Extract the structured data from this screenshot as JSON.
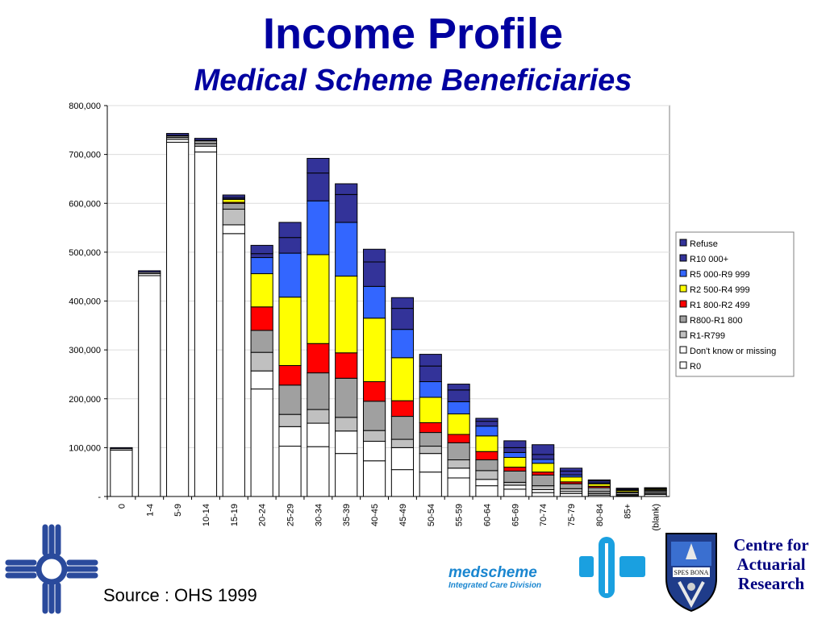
{
  "title": "Income Profile",
  "subtitle": "Medical Scheme Beneficiaries",
  "source": "Source : OHS 1999",
  "logos": {
    "medscheme_name": "medscheme",
    "medscheme_tagline": "Integrated Care Division",
    "car_lines": [
      "Centre for",
      "Actuarial",
      "Research"
    ],
    "seal_text": "SPES BONA"
  },
  "chart_data": {
    "type": "bar",
    "stacked": true,
    "categories": [
      "0",
      "1-4",
      "5-9",
      "10-14",
      "15-19",
      "20-24",
      "25-29",
      "30-34",
      "35-39",
      "40-45",
      "45-49",
      "50-54",
      "55-59",
      "60-64",
      "65-69",
      "70-74",
      "75-79",
      "80-84",
      "85+",
      "(blank)"
    ],
    "y_ticks": [
      "-",
      "100,000",
      "200,000",
      "300,000",
      "400,000",
      "500,000",
      "600,000",
      "700,000",
      "800,000"
    ],
    "ylim": [
      0,
      800000
    ],
    "legend_position": "right",
    "grid": true,
    "series": [
      {
        "name": "R0",
        "color": "#ffffff",
        "values": [
          95000,
          452000,
          725000,
          705000,
          538000,
          220000,
          103000,
          102000,
          88000,
          73000,
          55000,
          50000,
          38000,
          22000,
          15000,
          8000,
          6000,
          3000,
          1000,
          4000
        ]
      },
      {
        "name": "Don't know or missing",
        "color": "#ffffff",
        "values": [
          3000,
          4000,
          6000,
          12000,
          18000,
          37000,
          40000,
          48000,
          46000,
          40000,
          45000,
          38000,
          20000,
          13000,
          8000,
          6000,
          4000,
          3000,
          1000,
          2000
        ]
      },
      {
        "name": "R1-R799",
        "color": "#c0c0c0",
        "values": [
          0,
          3000,
          4000,
          5000,
          32000,
          38000,
          25000,
          28000,
          28000,
          22000,
          17000,
          15000,
          17000,
          18000,
          6000,
          8000,
          6000,
          4000,
          2000,
          3000
        ]
      },
      {
        "name": "R800-R1 800",
        "color": "#a0a0a0",
        "values": [
          0,
          0,
          3000,
          6000,
          12000,
          45000,
          60000,
          75000,
          80000,
          60000,
          47000,
          28000,
          35000,
          22000,
          23000,
          22000,
          10000,
          8000,
          4000,
          3000
        ]
      },
      {
        "name": "R1 800-R2 499",
        "color": "#ff0000",
        "values": [
          0,
          0,
          0,
          0,
          2000,
          48000,
          40000,
          60000,
          52000,
          40000,
          32000,
          20000,
          17000,
          17000,
          8000,
          6000,
          4000,
          3000,
          1000,
          1000
        ]
      },
      {
        "name": "R2 500-R4 999",
        "color": "#ffff00",
        "values": [
          0,
          0,
          0,
          0,
          6000,
          68000,
          140000,
          182000,
          157000,
          130000,
          88000,
          52000,
          42000,
          32000,
          20000,
          18000,
          10000,
          5000,
          3000,
          2000
        ]
      },
      {
        "name": "R5 000-R9 999",
        "color": "#3366ff",
        "values": [
          0,
          0,
          0,
          0,
          1000,
          33000,
          90000,
          110000,
          110000,
          65000,
          58000,
          32000,
          25000,
          20000,
          10000,
          8000,
          4000,
          2000,
          1000,
          1000
        ]
      },
      {
        "name": "R10 000+",
        "color": "#333399",
        "values": [
          0,
          0,
          1000,
          1000,
          3000,
          8000,
          32000,
          57000,
          57000,
          50000,
          43000,
          32000,
          24000,
          10000,
          10000,
          10000,
          8000,
          4000,
          2000,
          1000
        ]
      },
      {
        "name": "Refuse",
        "color": "#333399",
        "values": [
          2000,
          3000,
          4000,
          4000,
          5000,
          17000,
          31000,
          30000,
          22000,
          26000,
          22000,
          24000,
          12000,
          6000,
          14000,
          20000,
          6000,
          2000,
          2000,
          1000
        ]
      }
    ]
  }
}
